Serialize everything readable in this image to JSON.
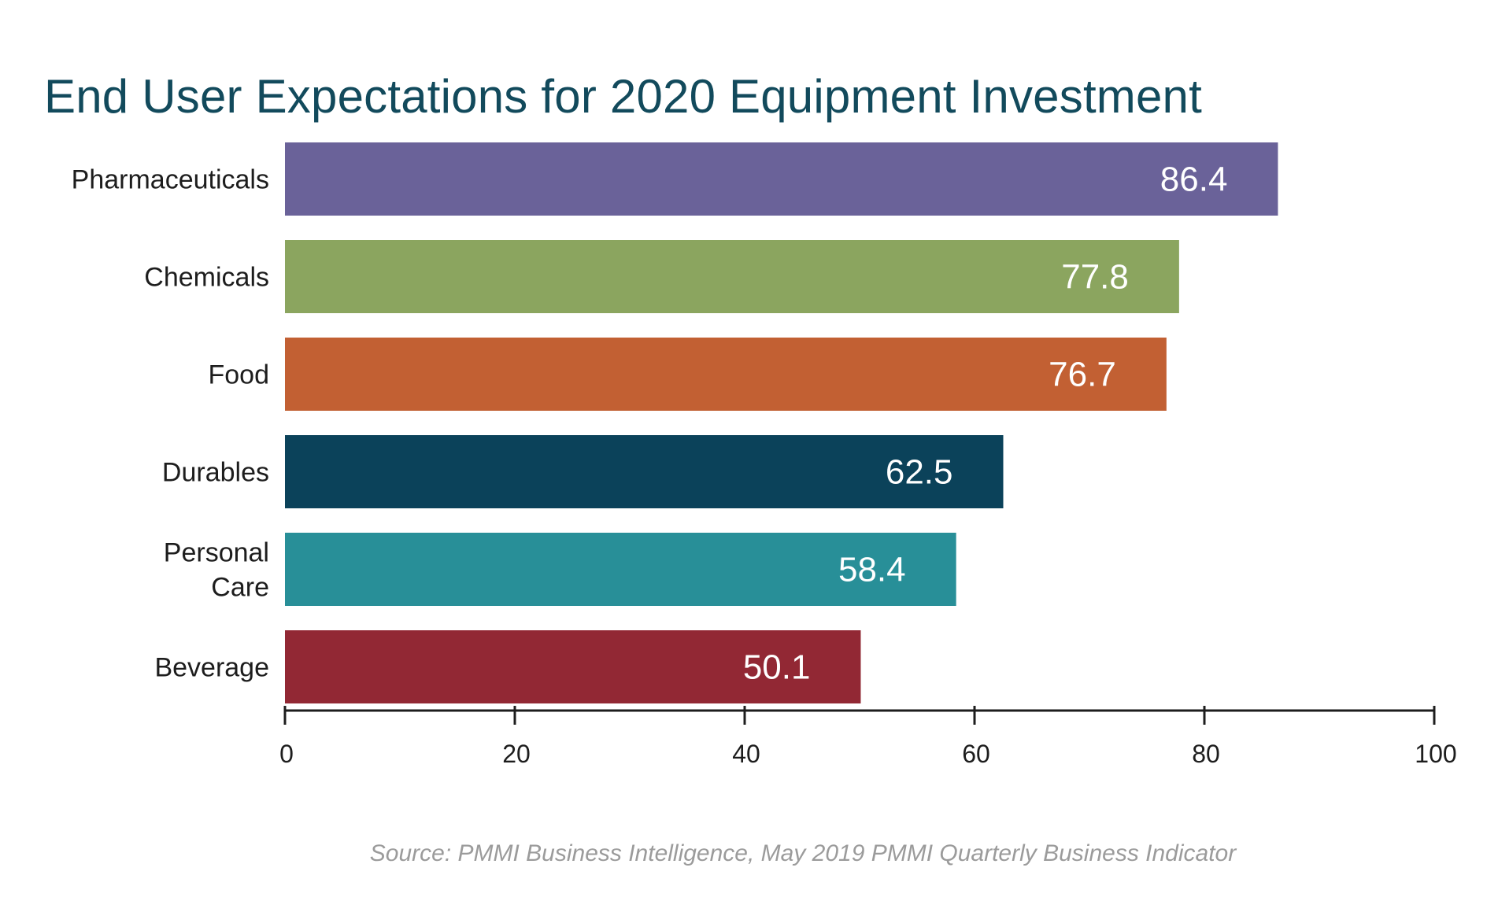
{
  "chart_data": {
    "type": "bar",
    "orientation": "horizontal",
    "title": "End User Expectations for 2020 Equipment Investment",
    "categories": [
      "Pharmaceuticals",
      "Chemicals",
      "Food",
      "Durables",
      "Personal Care",
      "Beverage"
    ],
    "category_lines": [
      [
        "Pharmaceuticals"
      ],
      [
        "Chemicals"
      ],
      [
        "Food"
      ],
      [
        "Durables"
      ],
      [
        "Personal",
        "Care"
      ],
      [
        "Beverage"
      ]
    ],
    "values": [
      86.4,
      77.8,
      76.7,
      62.5,
      58.4,
      50.1
    ],
    "value_labels": [
      "86.4",
      "77.8",
      "76.7",
      "62.5",
      "58.4",
      "50.1"
    ],
    "colors": [
      "#6a6299",
      "#8ba55f",
      "#c26033",
      "#0b425a",
      "#288f98",
      "#922834"
    ],
    "xlim": [
      0,
      100
    ],
    "x_ticks": [
      0,
      20,
      40,
      60,
      80,
      100
    ],
    "x_tick_labels": [
      "0",
      "20",
      "40",
      "60",
      "80",
      "100"
    ],
    "xlabel": "",
    "ylabel": "",
    "grid": false,
    "legend": "none",
    "source": "Source: PMMI Business Intelligence, May 2019 PMMI Quarterly Business Indicator"
  },
  "style": {
    "title_color": "#124a5c",
    "source_color": "#9b9b9b",
    "axis_color": "#1d1d1d"
  }
}
